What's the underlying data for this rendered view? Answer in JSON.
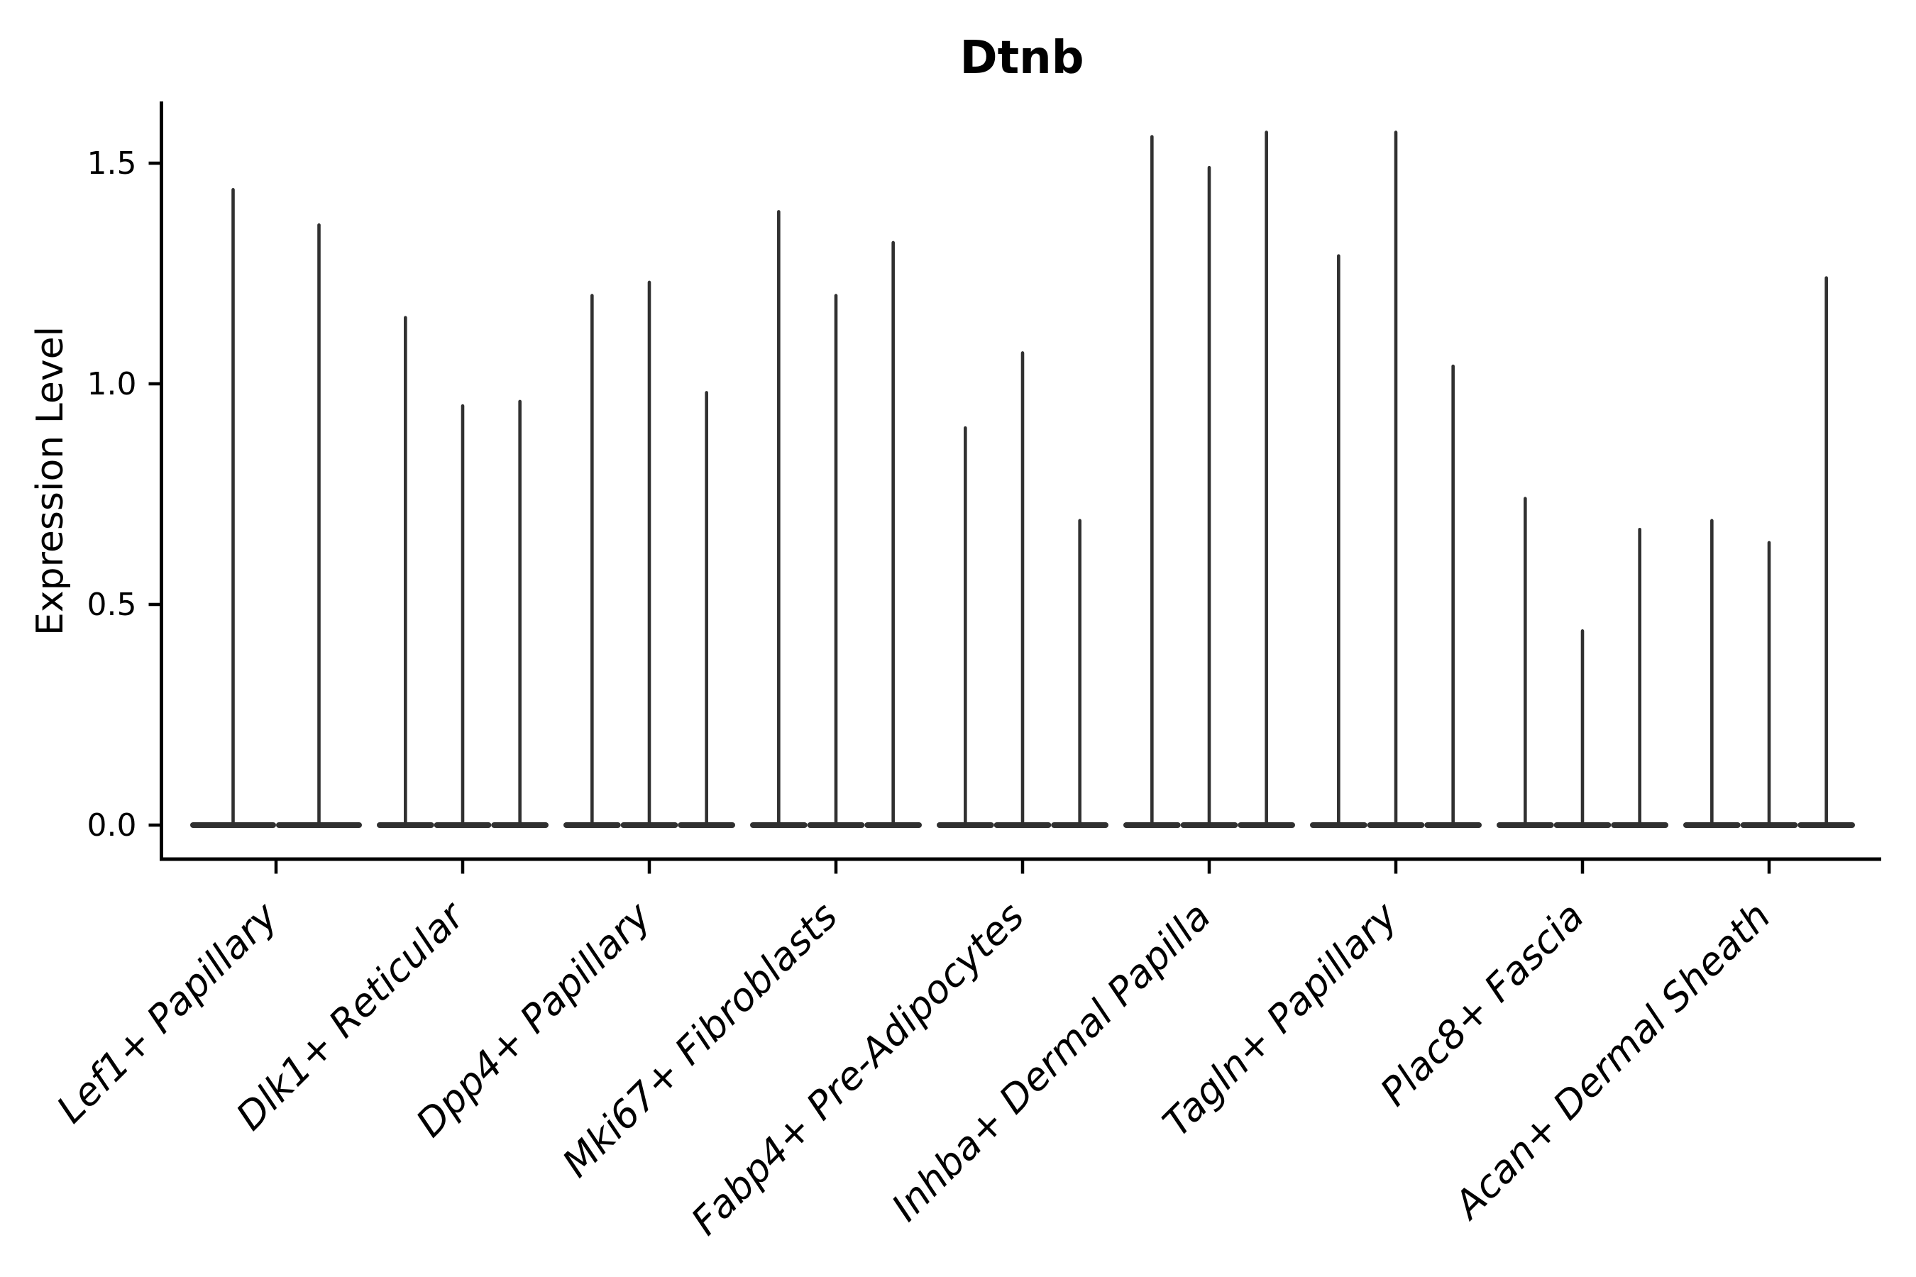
{
  "figure": {
    "title": "Dtnb",
    "ylabel": "Expression Level"
  },
  "chart_data": {
    "type": "violin",
    "title": "Dtnb",
    "xlabel": "",
    "ylabel": "Expression Level",
    "grid": false,
    "legend": "none",
    "ytick_labels": [
      "0.0",
      "0.5",
      "1.0",
      "1.5"
    ],
    "ytick_values": [
      0,
      0.5,
      1.0,
      1.5
    ],
    "ylim": [
      -0.08,
      1.64
    ],
    "violin_color": "#303030",
    "axis_color": "#000000",
    "violin_shape": "density mass concentrated at 0 (wide flat base) with a thin spike rising to the maximum expression value",
    "categories": [
      "Lef1+ Papillary",
      "Dlk1+ Reticular",
      "Dpp4+ Papillary",
      "Mki67+ Fibroblasts",
      "Fabp4+ Pre-Adipocytes",
      "Inhba+ Dermal Papilla",
      "Tagln+ Papillary",
      "Plac8+ Fascia",
      "Acan+ Dermal Sheath"
    ],
    "groups": [
      {
        "category": "Lef1+ Papillary",
        "violin_max_expression": [
          1.44,
          1.36
        ]
      },
      {
        "category": "Dlk1+ Reticular",
        "violin_max_expression": [
          1.15,
          0.95,
          0.96
        ]
      },
      {
        "category": "Dpp4+ Papillary",
        "violin_max_expression": [
          1.2,
          1.23,
          0.98
        ]
      },
      {
        "category": "Mki67+ Fibroblasts",
        "violin_max_expression": [
          1.39,
          1.2,
          1.32
        ]
      },
      {
        "category": "Fabp4+ Pre-Adipocytes",
        "violin_max_expression": [
          0.9,
          1.07,
          0.69
        ]
      },
      {
        "category": "Inhba+ Dermal Papilla",
        "violin_max_expression": [
          1.56,
          1.49,
          1.57
        ]
      },
      {
        "category": "Tagln+ Papillary",
        "violin_max_expression": [
          1.29,
          1.57,
          1.04
        ]
      },
      {
        "category": "Plac8+ Fascia",
        "violin_max_expression": [
          0.74,
          0.44,
          0.67
        ]
      },
      {
        "category": "Acan+ Dermal Sheath",
        "violin_max_expression": [
          0.69,
          0.64,
          1.24
        ]
      }
    ]
  }
}
